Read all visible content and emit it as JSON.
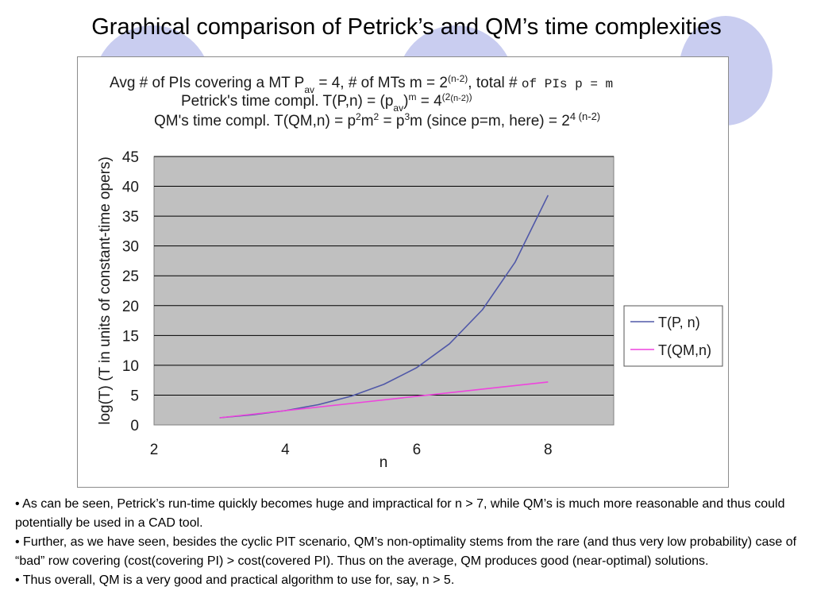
{
  "slide": {
    "title": "Graphical comparison of Petrick’s and QM’s time complexities",
    "bullets": [
      "• As can be seen, Petrick’s run-time quickly becomes huge and impractical for n > 7, while QM’s is much more reasonable and thus could potentially be used in a CAD tool.",
      "• Further, as we have seen, besides the cyclic PIT scenario, QM’s non-optimality stems from the rare (and thus very low probability) case of “bad” row covering (cost(covering PI) > cost(covered PI). Thus on the average, QM produces good (near-optimal) solutions.",
      "• Thus overall, QM is a very good and practical algorithm to use for, say,  n > 5."
    ],
    "colors": {
      "decor_circle": "#c9cdf0",
      "plot_area": "#c0c0c0",
      "gridline": "#000000",
      "series_petrick": "#5058a8",
      "series_qm": "#ee44dd"
    }
  },
  "chart_data": {
    "type": "line",
    "title_lines": [
      "Avg # of PIs covering a MT P_av = 4, # of MTs m = 2^(n-2), total # of PIs p = m",
      "Petrick's time compl. T(P,n) = (p_av)^m = 4^(2^(n-2))",
      "QM's time compl. T(QM,n) = p²m² = p³m (since p=m, here) = 2^4(n-2)"
    ],
    "title_parts": {
      "l1_a": "Avg # of PIs covering a MT P",
      "l1_sub": "av",
      "l1_b": " = 4, # of MTs m = 2",
      "l1_sup": "(n-2)",
      "l1_c": ", total # ",
      "l1_mono": "of PIs p = m",
      "l2_a": "Petrick's time compl. T(P,n) = (p",
      "l2_sub": "av",
      "l2_b": ")",
      "l2_sup_m": "m",
      "l2_c": " = 4",
      "l2_sup": "(2",
      "l2_supsup": "(n-2)",
      "l2_close": ")",
      "l3_a": "QM's time compl. T(QM,n) = p",
      "l3_sup1": "2",
      "l3_b": "m",
      "l3_sup2": "2",
      "l3_c": " = p",
      "l3_sup3": "3",
      "l3_d": "m (since p=m, here) = 2",
      "l3_sup": "4 (n-2)"
    },
    "xlabel": "n",
    "ylabel": "log(T) (T in units of constant-time opers)",
    "xlim": [
      2,
      9
    ],
    "ylim": [
      0,
      45
    ],
    "x_ticks": [
      2,
      4,
      6,
      8
    ],
    "y_ticks": [
      0,
      5,
      10,
      15,
      20,
      25,
      30,
      35,
      40,
      45
    ],
    "grid": "horizontal",
    "legend_position": "right",
    "series": [
      {
        "name": "T(P, n)",
        "x": [
          3,
          3.5,
          4,
          4.5,
          5,
          5.5,
          6,
          6.5,
          7,
          7.5,
          8
        ],
        "y": [
          1.2,
          1.7,
          2.4,
          3.4,
          4.8,
          6.8,
          9.6,
          13.6,
          19.3,
          27.3,
          38.5
        ]
      },
      {
        "name": "T(QM,n)",
        "x": [
          3,
          4,
          5,
          6,
          7,
          8
        ],
        "y": [
          1.2,
          2.4,
          3.6,
          4.8,
          6.0,
          7.2
        ]
      }
    ]
  }
}
